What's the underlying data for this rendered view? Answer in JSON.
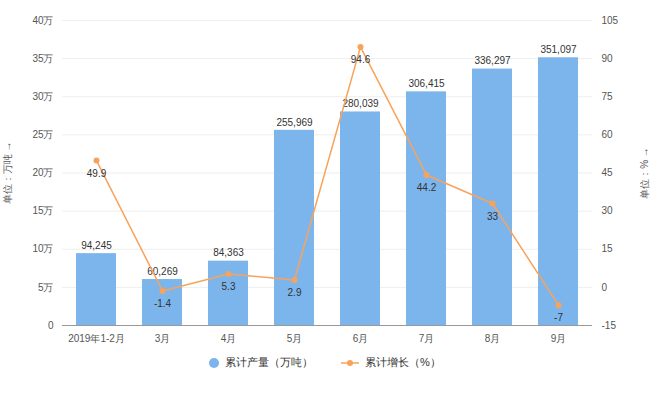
{
  "chart_data": {
    "type": "bar",
    "categories": [
      "2019年1-2月",
      "3月",
      "4月",
      "5月",
      "6月",
      "7月",
      "8月",
      "9月"
    ],
    "series": [
      {
        "name": "累计产量（万吨）",
        "type": "bar",
        "color": "#7cb5ec",
        "values": [
          94245,
          60269,
          84363,
          255969,
          280039,
          306415,
          336297,
          351097
        ],
        "value_labels": [
          "94,245",
          "60,269",
          "84,363",
          "255,969",
          "280,039",
          "306,415",
          "336,297",
          "351,097"
        ]
      },
      {
        "name": "累计增长（%）",
        "type": "line",
        "axis": "y2",
        "color": "#f7a35c",
        "marker": "circle",
        "values": [
          49.9,
          -1.4,
          5.3,
          2.9,
          94.6,
          44.2,
          33,
          -7
        ]
      }
    ],
    "ylabel": "单位：万吨",
    "y2label": "单位：%",
    "ylim": [
      0,
      400000
    ],
    "yticks": [
      0,
      {
        "value": 50000,
        "label": "5万"
      },
      {
        "value": 100000,
        "label": "10万"
      },
      {
        "value": 150000,
        "label": "15万"
      },
      {
        "value": 200000,
        "label": "20万"
      },
      {
        "value": 250000,
        "label": "25万"
      },
      {
        "value": 300000,
        "label": "30万"
      },
      {
        "value": 350000,
        "label": "35万"
      },
      {
        "value": 400000,
        "label": "40万"
      }
    ],
    "y2lim": [
      -15,
      105
    ],
    "y2ticks": [
      -15,
      0,
      15,
      30,
      45,
      60,
      75,
      90,
      105
    ],
    "grid": true,
    "data_labels": true,
    "legend": "bottom"
  }
}
